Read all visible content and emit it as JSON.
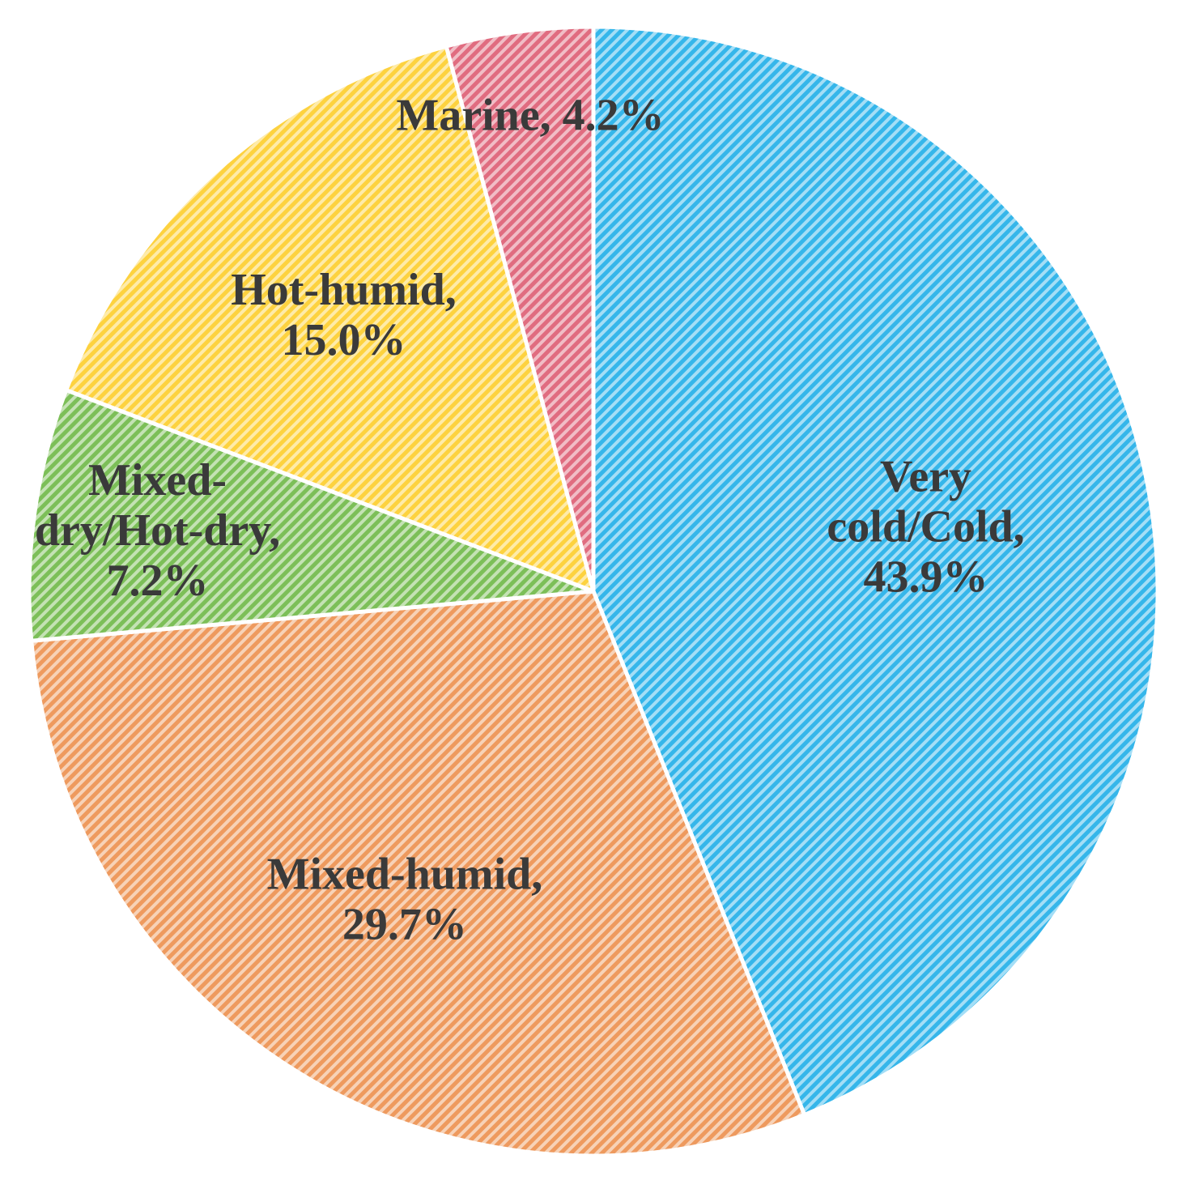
{
  "chart_data": {
    "type": "pie",
    "title": "",
    "start_angle_deg": 0,
    "direction": "clockwise",
    "slices": [
      {
        "label_lines": [
          "Very",
          "cold/Cold,",
          "43.9%"
        ],
        "value": 43.9,
        "color": "#35b6ea"
      },
      {
        "label_lines": [
          "Mixed-humid,",
          "29.7%"
        ],
        "value": 29.7,
        "color": "#ee9a5e"
      },
      {
        "label_lines": [
          "Mixed-",
          "dry/Hot-dry,",
          "7.2%"
        ],
        "value": 7.2,
        "color": "#7cbf58"
      },
      {
        "label_lines": [
          "Hot-humid,",
          "15.0%"
        ],
        "value": 15.0,
        "color": "#fdd23f"
      },
      {
        "label_lines": [
          "Marine, 4.2%"
        ],
        "value": 4.2,
        "color": "#e06c80"
      }
    ],
    "fill_pattern": "diagonal-hatch",
    "slice_border_color": "#ffffff"
  }
}
